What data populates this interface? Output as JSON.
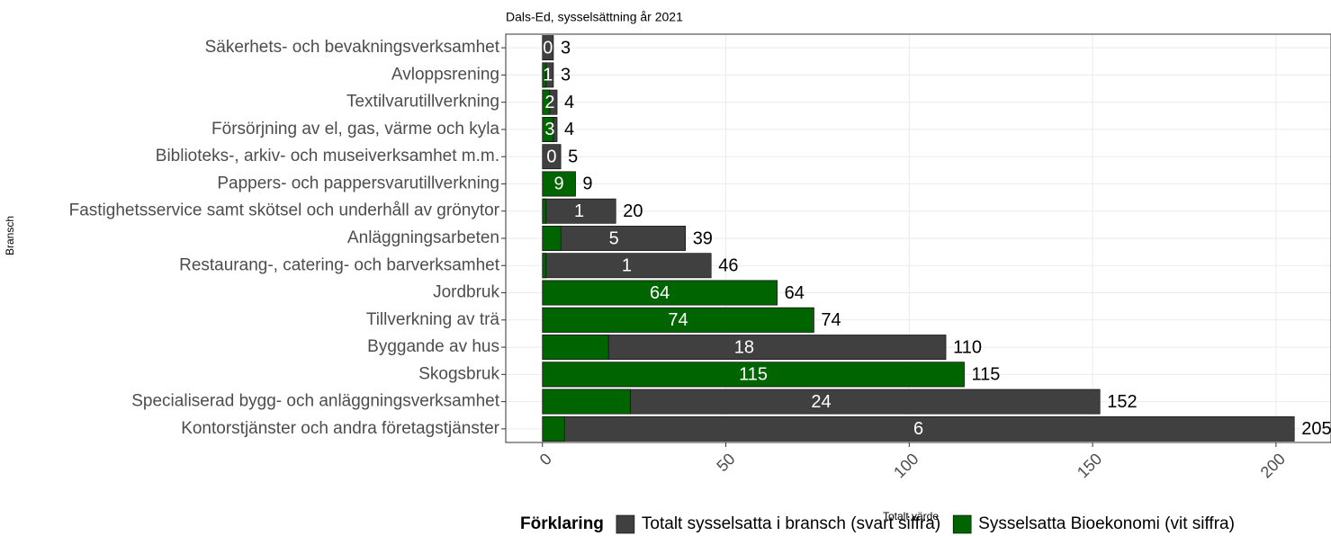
{
  "chart_data": {
    "type": "bar",
    "orientation": "horizontal",
    "title": "Dals-Ed, sysselsättning år 2021",
    "x_label": "Totalt värde",
    "y_label": "Bransch",
    "legend_title": "Förklaring",
    "categories": [
      "Säkerhets- och bevakningsverksamhet",
      "Avloppsrening",
      "Textilvarutillverkning",
      "Försörjning av el, gas, värme och kyla",
      "Biblioteks-, arkiv- och museiverksamhet m.m.",
      "Pappers- och pappersvarutillverkning",
      "Fastighetsservice samt skötsel och underhåll av grönytor",
      "Anläggningsarbeten",
      "Restaurang-, catering- och barverksamhet",
      "Jordbruk",
      "Tillverkning av trä",
      "Byggande av hus",
      "Skogsbruk",
      "Specialiserad bygg- och anläggningsverksamhet",
      "Kontorstjänster och andra företagstjänster"
    ],
    "series": [
      {
        "name": "Totalt sysselsatta i bransch (svart siffra)",
        "color": "#404040",
        "values": [
          3,
          3,
          4,
          4,
          5,
          9,
          20,
          39,
          46,
          64,
          74,
          110,
          115,
          152,
          205
        ]
      },
      {
        "name": "Sysselsatta Bioekonomi (vit siffra)",
        "color": "#006400",
        "values": [
          0,
          1,
          2,
          3,
          0,
          9,
          1,
          5,
          1,
          64,
          74,
          18,
          115,
          24,
          6
        ]
      }
    ],
    "xlim": [
      -10,
      215
    ],
    "xticks": [
      0,
      50,
      100,
      150,
      200
    ],
    "grid": true
  }
}
